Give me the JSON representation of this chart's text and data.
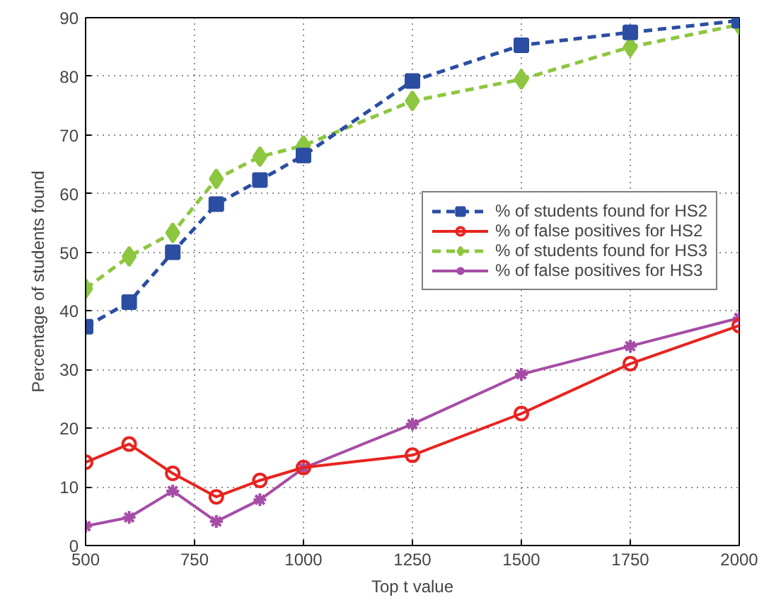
{
  "chart_data": {
    "type": "line",
    "xlabel": "Top t value",
    "ylabel": "Percentage of students found",
    "x": [
      500,
      600,
      700,
      800,
      900,
      1000,
      1250,
      1500,
      1750,
      2000
    ],
    "xlim": [
      500,
      2000
    ],
    "xticks": [
      500,
      750,
      1000,
      1250,
      1500,
      1750,
      2000
    ],
    "ylim": [
      0,
      90
    ],
    "yticks": [
      0,
      10,
      20,
      30,
      40,
      50,
      60,
      70,
      80,
      90
    ],
    "grid": true,
    "legend": "right",
    "series": [
      {
        "name": "% of students found for HS2",
        "color": "#2b4ea2",
        "line_style": "dashed",
        "marker": "square",
        "values": [
          37.3,
          41.5,
          50,
          58.2,
          62.3,
          66.5,
          79.2,
          85.3,
          87.5,
          89.5
        ]
      },
      {
        "name": "% of false positives for HS2",
        "color": "#e8231f",
        "line_style": "solid",
        "marker": "circle",
        "values": [
          14.2,
          17.3,
          12.3,
          8.3,
          11.1,
          13.3,
          15.4,
          22.5,
          31,
          37.5
        ]
      },
      {
        "name": "% of students found for HS3",
        "color": "#8dc63f",
        "line_style": "dashed",
        "marker": "diamond",
        "values": [
          43.8,
          49.3,
          53.3,
          62.5,
          66.3,
          68.2,
          75.8,
          79.5,
          85,
          88.8
        ]
      },
      {
        "name": "% of false positives for HS3",
        "color": "#a64ca6",
        "line_style": "solid",
        "marker": "cross",
        "values": [
          3.3,
          4.8,
          9.3,
          4.1,
          7.8,
          13.2,
          20.7,
          29.2,
          34,
          38.8
        ]
      }
    ]
  }
}
